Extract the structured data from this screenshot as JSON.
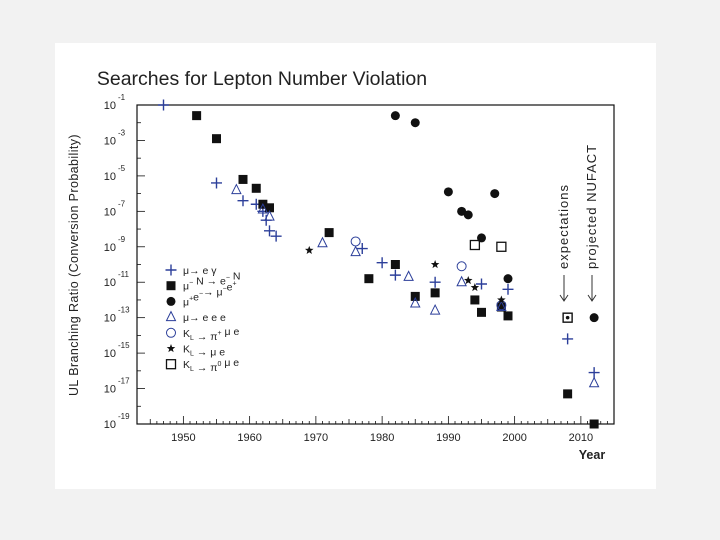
{
  "chart_data": {
    "type": "scatter",
    "title": "Searches for Lepton Number Violation",
    "xlabel": "Year",
    "ylabel": "UL Branching Ratio (Conversion Probability)",
    "xlim": [
      1943,
      2015
    ],
    "ylim_exponent": [
      -19,
      -1
    ],
    "log_y": true,
    "x_ticks": [
      1950,
      1960,
      1970,
      1980,
      1990,
      2000,
      2010
    ],
    "y_tick_exponents": [
      -1,
      -3,
      -5,
      -7,
      -9,
      -11,
      -13,
      -15,
      -17,
      -19
    ],
    "y_tick_base": "10",
    "grid": false,
    "legend_position": "lower-left",
    "annotations": [
      "expectations",
      "projected NUFACT"
    ],
    "series": [
      {
        "label_parts": [
          "μ",
          "",
          "→ e γ"
        ],
        "marker": "plus",
        "color": "#2c3f9a",
        "points": [
          [
            1947,
            -1
          ],
          [
            1955,
            -5.4
          ],
          [
            1959,
            -6.4
          ],
          [
            1961,
            -6.6
          ],
          [
            1962,
            -7.0
          ],
          [
            1962.5,
            -7.5
          ],
          [
            1963,
            -8.1
          ],
          [
            1964,
            -8.4
          ],
          [
            1977,
            -9.1
          ],
          [
            1980,
            -9.9
          ],
          [
            1982,
            -10.6
          ],
          [
            1988,
            -11.0
          ],
          [
            1995,
            -11.1
          ],
          [
            1999,
            -11.4
          ],
          [
            2008,
            -14.2
          ],
          [
            2012,
            -16.1
          ]
        ]
      },
      {
        "label_parts": [
          "μ",
          "−",
          " N → e",
          "−",
          " N"
        ],
        "marker": "filled-square",
        "color": "#111111",
        "points": [
          [
            1952,
            -1.6
          ],
          [
            1955,
            -2.9
          ],
          [
            1959,
            -5.2
          ],
          [
            1961,
            -5.7
          ],
          [
            1962,
            -6.6
          ],
          [
            1963,
            -6.8
          ],
          [
            1972,
            -8.2
          ],
          [
            1978,
            -10.8
          ],
          [
            1982,
            -10.0
          ],
          [
            1985,
            -11.8
          ],
          [
            1988,
            -11.6
          ],
          [
            1994,
            -12.0
          ],
          [
            1995,
            -12.7
          ],
          [
            1998,
            -12.4
          ],
          [
            1999,
            -12.9
          ],
          [
            2008,
            -17.3
          ],
          [
            2012,
            -19.0
          ]
        ]
      },
      {
        "label_parts": [
          "μ",
          "+",
          "e",
          "−",
          "→ μ",
          "−",
          "e",
          "+"
        ],
        "marker": "filled-circle",
        "color": "#111111",
        "points": [
          [
            1982,
            -1.6
          ],
          [
            1985,
            -2.0
          ],
          [
            1990,
            -5.9
          ],
          [
            1992,
            -7.0
          ],
          [
            1993,
            -7.2
          ],
          [
            1995,
            -8.5
          ],
          [
            1997,
            -6.0
          ],
          [
            1999,
            -10.8
          ],
          [
            2012,
            -13.0
          ]
        ]
      },
      {
        "label_parts": [
          "μ",
          "",
          "→ e e e"
        ],
        "marker": "open-triangle",
        "color": "#2c3f9a",
        "points": [
          [
            1958,
            -5.8
          ],
          [
            1962,
            -6.9
          ],
          [
            1963,
            -7.3
          ],
          [
            1971,
            -8.8
          ],
          [
            1976,
            -9.3
          ],
          [
            1984,
            -10.7
          ],
          [
            1985,
            -12.2
          ],
          [
            1988,
            -12.6
          ],
          [
            1992,
            -11.0
          ],
          [
            1998,
            -12.4
          ],
          [
            2012,
            -16.7
          ]
        ]
      },
      {
        "label_parts": [
          "K",
          "L",
          " → π",
          "+",
          " μ e"
        ],
        "marker": "open-circle",
        "color": "#2c3f9a",
        "points": [
          [
            1976,
            -8.7
          ],
          [
            1992,
            -10.1
          ],
          [
            1998,
            -12.3
          ]
        ]
      },
      {
        "label_parts": [
          "K",
          "L",
          " → μ e"
        ],
        "marker": "star",
        "color": "#111111",
        "points": [
          [
            1969,
            -9.2
          ],
          [
            1988,
            -10.0
          ],
          [
            1993,
            -10.9
          ],
          [
            1994,
            -11.3
          ],
          [
            1998,
            -12.0
          ]
        ]
      },
      {
        "label_parts": [
          "K",
          "L",
          " → π",
          "0",
          " μ e"
        ],
        "marker": "open-square",
        "color": "#111111",
        "points": [
          [
            1994,
            -8.9
          ],
          [
            1998,
            -9.0
          ]
        ]
      }
    ],
    "expectation_marker": {
      "marker": "dotted-square",
      "color": "#111111",
      "point": [
        2008,
        -13.0
      ]
    }
  }
}
